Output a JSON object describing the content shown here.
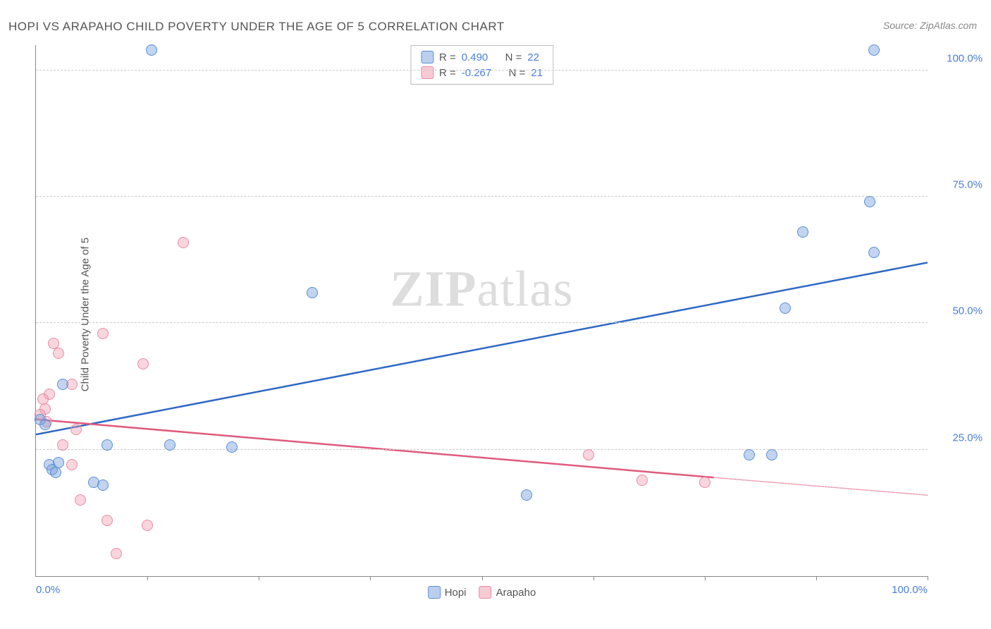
{
  "title": "HOPI VS ARAPAHO CHILD POVERTY UNDER THE AGE OF 5 CORRELATION CHART",
  "source": "Source: ZipAtlas.com",
  "y_axis_label": "Child Poverty Under the Age of 5",
  "watermark_bold": "ZIP",
  "watermark_rest": "atlas",
  "chart": {
    "type": "scatter",
    "background_color": "#ffffff",
    "grid_color": "#cccccc",
    "axis_color": "#888888",
    "xlim": [
      0,
      100
    ],
    "ylim": [
      0,
      105
    ],
    "x_tick_labels": [
      {
        "pos": 0,
        "label": "0.0%"
      },
      {
        "pos": 100,
        "label": "100.0%"
      }
    ],
    "x_tick_marks": [
      12.5,
      25,
      37.5,
      50,
      62.5,
      75,
      87.5,
      100
    ],
    "y_tick_labels": [
      {
        "pos": 25,
        "label": "25.0%"
      },
      {
        "pos": 50,
        "label": "50.0%"
      },
      {
        "pos": 75,
        "label": "75.0%"
      },
      {
        "pos": 100,
        "label": "100.0%"
      }
    ],
    "y_gridlines": [
      25,
      50,
      75,
      100
    ],
    "marker_size": 16,
    "series": {
      "hopi": {
        "label": "Hopi",
        "fill_color": "rgba(120,160,220,0.45)",
        "stroke_color": "#5a8fd8",
        "line_color": "#2e68c5",
        "line_width": 2.5,
        "R": "0.490",
        "N": "22",
        "regression": {
          "x1": 0,
          "y1": 28,
          "x2": 100,
          "y2": 62
        },
        "points": [
          {
            "x": 13,
            "y": 104
          },
          {
            "x": 94,
            "y": 104
          },
          {
            "x": 93.5,
            "y": 74
          },
          {
            "x": 86,
            "y": 68
          },
          {
            "x": 94,
            "y": 64
          },
          {
            "x": 84,
            "y": 53
          },
          {
            "x": 31,
            "y": 56
          },
          {
            "x": 3,
            "y": 38
          },
          {
            "x": 0.5,
            "y": 31
          },
          {
            "x": 1,
            "y": 30
          },
          {
            "x": 1.5,
            "y": 22
          },
          {
            "x": 1.8,
            "y": 21
          },
          {
            "x": 2.2,
            "y": 20.5
          },
          {
            "x": 2.5,
            "y": 22.5
          },
          {
            "x": 6.5,
            "y": 18.5
          },
          {
            "x": 7.5,
            "y": 18
          },
          {
            "x": 8,
            "y": 26
          },
          {
            "x": 15,
            "y": 26
          },
          {
            "x": 22,
            "y": 25.5
          },
          {
            "x": 55,
            "y": 16
          },
          {
            "x": 80,
            "y": 24
          },
          {
            "x": 82.5,
            "y": 24
          }
        ]
      },
      "arapaho": {
        "label": "Arapaho",
        "fill_color": "rgba(240,150,170,0.4)",
        "stroke_color": "#e88ca3",
        "line_color": "#e05a7d",
        "line_width": 2.5,
        "R": "-0.267",
        "N": "21",
        "regression_solid": {
          "x1": 0,
          "y1": 31,
          "x2": 76,
          "y2": 19.5
        },
        "regression_dashed": {
          "x1": 76,
          "y1": 19.5,
          "x2": 100,
          "y2": 16
        },
        "points": [
          {
            "x": 16.5,
            "y": 66
          },
          {
            "x": 7.5,
            "y": 48
          },
          {
            "x": 2,
            "y": 46
          },
          {
            "x": 2.5,
            "y": 44
          },
          {
            "x": 12,
            "y": 42
          },
          {
            "x": 4,
            "y": 38
          },
          {
            "x": 1.5,
            "y": 36
          },
          {
            "x": 0.8,
            "y": 35
          },
          {
            "x": 1,
            "y": 33
          },
          {
            "x": 0.5,
            "y": 32
          },
          {
            "x": 1.2,
            "y": 30.5
          },
          {
            "x": 4.5,
            "y": 29
          },
          {
            "x": 4,
            "y": 22
          },
          {
            "x": 5,
            "y": 15
          },
          {
            "x": 8,
            "y": 11
          },
          {
            "x": 12.5,
            "y": 10
          },
          {
            "x": 9,
            "y": 4.5
          },
          {
            "x": 62,
            "y": 24
          },
          {
            "x": 68,
            "y": 19
          },
          {
            "x": 75,
            "y": 18.5
          },
          {
            "x": 3,
            "y": 26
          }
        ]
      }
    },
    "legend_top": {
      "r_label": "R =",
      "n_label": "N ="
    }
  }
}
